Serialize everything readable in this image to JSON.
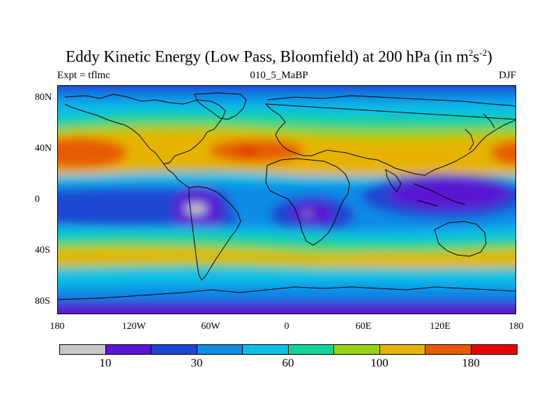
{
  "title": {
    "main": "Eddy Kinetic Energy (Low Pass, Bloomfield) at 200 hPa (in m",
    "exp1": "2",
    "mid": "s",
    "exp2": "-2",
    "close": ")"
  },
  "subtitle": {
    "left": "Expt = tflmc",
    "center": "010_5_MaBP",
    "right": "DJF"
  },
  "map": {
    "lat_labels": [
      "80N",
      "40N",
      "0",
      "40S",
      "80S"
    ],
    "lon_labels": [
      "180",
      "120W",
      "60W",
      "0",
      "60E",
      "120E",
      "180"
    ],
    "lat_range": [
      -90,
      90
    ],
    "lon_range": [
      -180,
      180
    ],
    "projection": "cylindrical equidistant",
    "field": "eddy kinetic energy, 200 hPa, DJF"
  },
  "colorbar": {
    "colors": [
      "#c8c8c8",
      "#5a14d2",
      "#1e46d2",
      "#0f8ce6",
      "#0fbee6",
      "#14d296",
      "#96d214",
      "#e6b400",
      "#e65a00",
      "#e60000"
    ],
    "labels": [
      "10",
      "30",
      "60",
      "100",
      "180"
    ],
    "label_boundaries": [
      1,
      3,
      5,
      7,
      9
    ]
  }
}
